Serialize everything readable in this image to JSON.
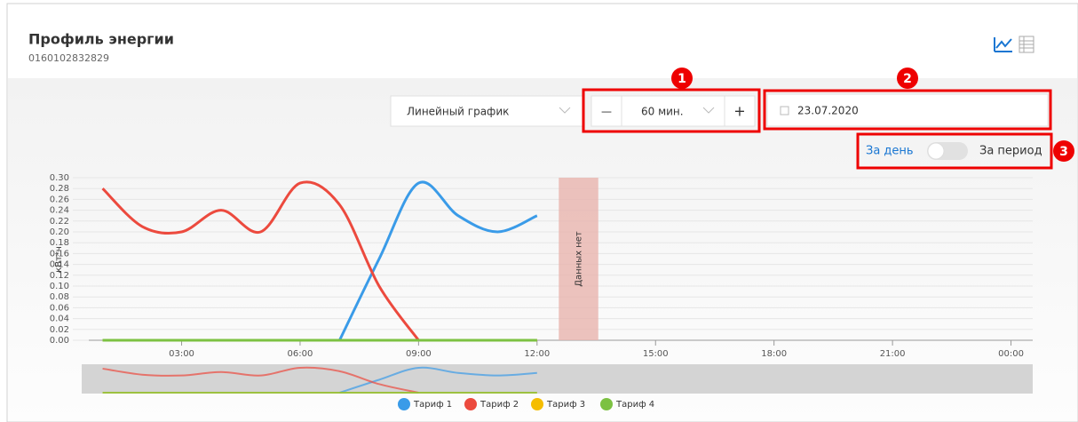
{
  "header": {
    "title": "Профиль энергии",
    "subtitle": "0160102832829"
  },
  "controls": {
    "chart_type": "Линейный график",
    "minus": "—",
    "interval": "60 мин.",
    "plus": "+",
    "date": "23.07.2020",
    "mode_day": "За день",
    "mode_period": "За период",
    "badges": [
      "1",
      "2",
      "3"
    ]
  },
  "chart_data": {
    "type": "line",
    "y_label": "кВт*ч",
    "x": [
      1,
      2,
      3,
      4,
      5,
      6,
      7,
      8,
      9,
      10,
      11,
      12
    ],
    "xlim": [
      0.65,
      24.55
    ],
    "xticks": [
      {
        "value": 3,
        "label": "03:00"
      },
      {
        "value": 6,
        "label": "06:00"
      },
      {
        "value": 9,
        "label": "09:00"
      },
      {
        "value": 12,
        "label": "12:00"
      },
      {
        "value": 15,
        "label": "15:00"
      },
      {
        "value": 18,
        "label": "18:00"
      },
      {
        "value": 21,
        "label": "21:00"
      },
      {
        "value": 24,
        "label": "00:00"
      }
    ],
    "ylim": [
      0,
      0.3
    ],
    "yticks": [
      {
        "value": 0,
        "label": "0.00"
      },
      {
        "value": 0.02,
        "label": "0.02"
      },
      {
        "value": 0.04,
        "label": "0.04"
      },
      {
        "value": 0.06,
        "label": "0.06"
      },
      {
        "value": 0.08,
        "label": "0.08"
      },
      {
        "value": 0.1,
        "label": "0.10"
      },
      {
        "value": 0.12,
        "label": "0.12"
      },
      {
        "value": 0.14,
        "label": "0.14"
      },
      {
        "value": 0.16,
        "label": "0.16"
      },
      {
        "value": 0.18,
        "label": "0.18"
      },
      {
        "value": 0.2,
        "label": "0.20"
      },
      {
        "value": 0.22,
        "label": "0.22"
      },
      {
        "value": 0.24,
        "label": "0.24"
      },
      {
        "value": 0.26,
        "label": "0.26"
      },
      {
        "value": 0.28,
        "label": "0.28"
      },
      {
        "value": 0.3,
        "label": "0.30"
      }
    ],
    "grid": true,
    "no_data": {
      "label": "Данных нет",
      "x": [
        12.55,
        13.55
      ]
    },
    "series": [
      {
        "name": "Тариф 1",
        "color": "#3a9be8",
        "values": [
          null,
          null,
          null,
          null,
          null,
          null,
          0,
          0.15,
          0.29,
          0.23,
          0.2,
          0.23
        ]
      },
      {
        "name": "Тариф 2",
        "color": "#ec4a3e",
        "values": [
          0.28,
          0.21,
          0.2,
          0.24,
          0.2,
          0.29,
          0.25,
          0.1,
          0,
          null,
          null,
          null
        ]
      },
      {
        "name": "Тариф 3",
        "color": "#f5bd00",
        "values": [
          0,
          0,
          0,
          0,
          0,
          0,
          0,
          0,
          0,
          0,
          0,
          0
        ]
      },
      {
        "name": "Тариф 4",
        "color": "#7cc142",
        "values": [
          0,
          0,
          0,
          0,
          0,
          0,
          0,
          0,
          0,
          0,
          0,
          0
        ]
      }
    ]
  }
}
